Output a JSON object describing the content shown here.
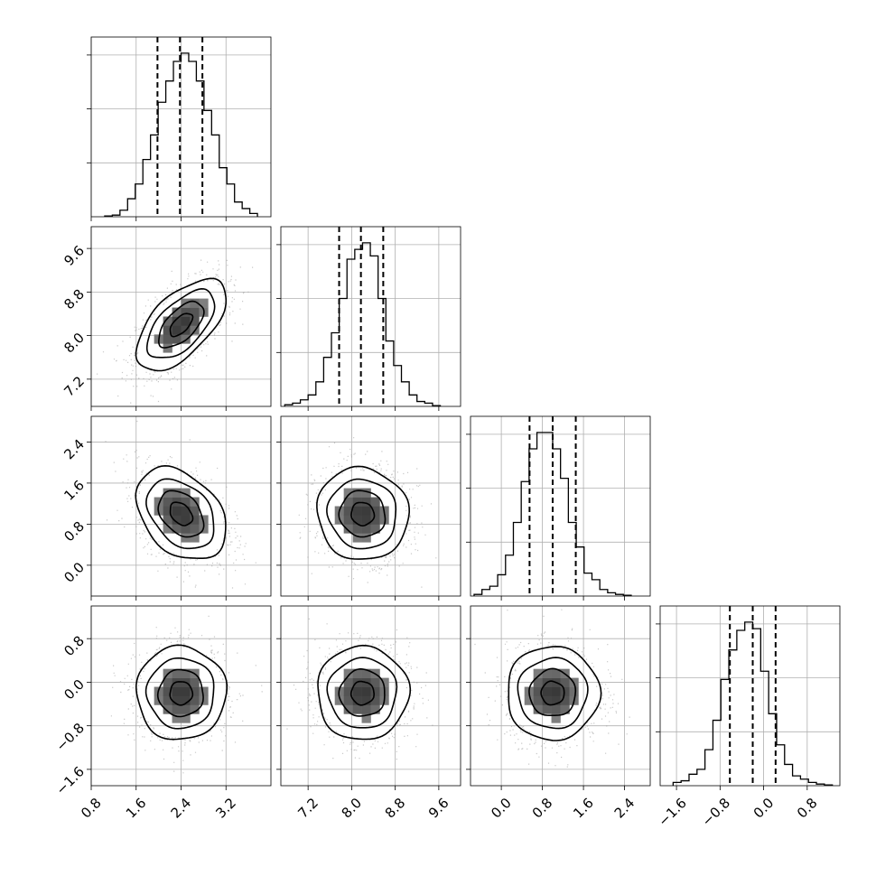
{
  "chart_data": {
    "type": "corner",
    "grid": true,
    "parameters": [
      {
        "range": [
          0.8,
          4.0
        ],
        "ticks": [
          "0.8",
          "1.6",
          "2.4",
          "3.2"
        ],
        "tick_values": [
          0.8,
          1.6,
          2.4,
          3.2
        ],
        "mean": 2.4,
        "std": 0.4,
        "quantiles": [
          1.98,
          2.38,
          2.78
        ],
        "hist_counts": [
          0.005,
          0.01,
          0.04,
          0.11,
          0.2,
          0.35,
          0.5,
          0.7,
          0.83,
          0.95,
          1.0,
          0.95,
          0.83,
          0.65,
          0.5,
          0.3,
          0.2,
          0.09,
          0.05,
          0.02
        ]
      },
      {
        "range": [
          6.7,
          10.0
        ],
        "ticks": [
          "7.2",
          "8.0",
          "8.8",
          "9.6"
        ],
        "tick_values": [
          7.2,
          8.0,
          8.8,
          9.6
        ],
        "mean": 8.2,
        "std": 0.42,
        "quantiles": [
          7.77,
          8.17,
          8.58
        ],
        "hist_counts": [
          0.01,
          0.02,
          0.04,
          0.07,
          0.15,
          0.3,
          0.45,
          0.66,
          0.9,
          0.96,
          1.0,
          0.92,
          0.66,
          0.4,
          0.25,
          0.15,
          0.07,
          0.03,
          0.02,
          0.005
        ]
      },
      {
        "range": [
          -0.6,
          2.9
        ],
        "ticks": [
          "0.0",
          "0.8",
          "1.6",
          "2.4"
        ],
        "tick_values": [
          0.0,
          0.8,
          1.6,
          2.4
        ],
        "mean": 1.0,
        "std": 0.45,
        "quantiles": [
          0.55,
          1.0,
          1.45
        ],
        "hist_counts": [
          0.01,
          0.04,
          0.06,
          0.13,
          0.25,
          0.45,
          0.7,
          0.9,
          1.0,
          1.0,
          0.9,
          0.72,
          0.45,
          0.3,
          0.14,
          0.1,
          0.04,
          0.02,
          0.01,
          0.005
        ]
      },
      {
        "range": [
          -1.9,
          1.4
        ],
        "ticks": [
          "−1.6",
          "−0.8",
          "0.0",
          "0.8"
        ],
        "tick_values": [
          -1.6,
          -0.8,
          0.0,
          0.8
        ],
        "mean": -0.2,
        "std": 0.43,
        "quantiles": [
          -0.62,
          -0.2,
          0.22
        ],
        "hist_counts": [
          0.02,
          0.03,
          0.07,
          0.1,
          0.22,
          0.4,
          0.65,
          0.83,
          0.95,
          1.0,
          0.96,
          0.7,
          0.44,
          0.25,
          0.13,
          0.06,
          0.04,
          0.02,
          0.01,
          0.005
        ]
      }
    ],
    "correlations": {
      "1-0": 0.6,
      "2-0": -0.35,
      "2-1": -0.05,
      "3-0": 0.0,
      "3-1": 0.0,
      "3-2": 0.0
    },
    "contour_levels_sigma": [
      0.5,
      1.0,
      1.5,
      2.0
    ]
  }
}
